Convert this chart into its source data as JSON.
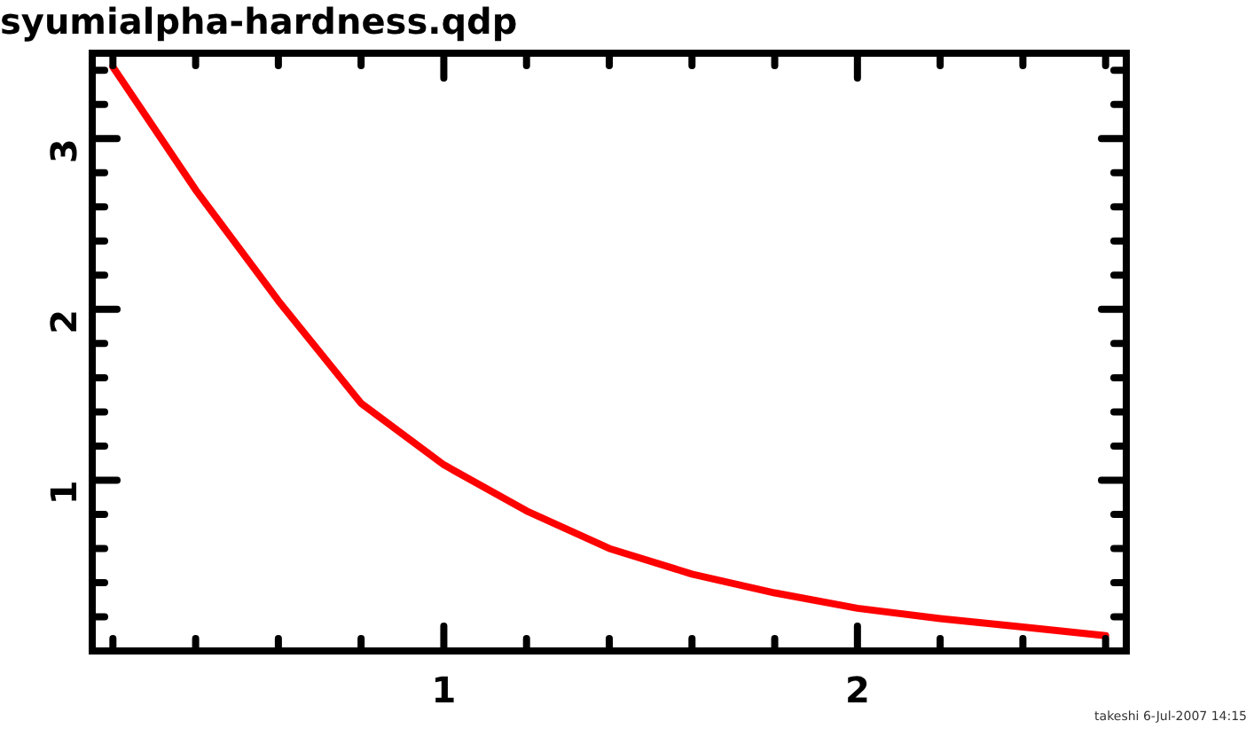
{
  "chart_data": {
    "type": "line",
    "title": "syumialpha-hardness.qdp",
    "x": [
      0.2,
      0.4,
      0.6,
      0.8,
      1.0,
      1.2,
      1.4,
      1.6,
      1.8,
      2.0,
      2.2,
      2.4,
      2.6
    ],
    "series": [
      {
        "color": "#ff0000",
        "values": [
          3.42,
          2.7,
          2.05,
          1.45,
          1.09,
          0.82,
          0.6,
          0.45,
          0.34,
          0.25,
          0.19,
          0.14,
          0.09
        ]
      }
    ],
    "xlim": [
      0.15,
      2.65
    ],
    "xticks": [
      {
        "value": 0.2,
        "label": null
      },
      {
        "value": 0.4,
        "label": null
      },
      {
        "value": 0.6,
        "label": null
      },
      {
        "value": 0.8,
        "label": null
      },
      1,
      {
        "value": 1.2,
        "label": null
      },
      {
        "value": 1.4,
        "label": null
      },
      {
        "value": 1.6,
        "label": null
      },
      {
        "value": 1.8,
        "label": null
      },
      2,
      {
        "value": 2.2,
        "label": null
      },
      {
        "value": 2.4,
        "label": null
      },
      {
        "value": 2.6,
        "label": null
      }
    ],
    "ylim": [
      0,
      3.5
    ],
    "yticks": [
      {
        "value": 0.2,
        "label": null
      },
      {
        "value": 0.4,
        "label": null
      },
      {
        "value": 0.6,
        "label": null
      },
      {
        "value": 0.8,
        "label": null
      },
      1,
      {
        "value": 1.2,
        "label": null
      },
      {
        "value": 1.4,
        "label": null
      },
      {
        "value": 1.6,
        "label": null
      },
      {
        "value": 1.8,
        "label": null
      },
      2,
      {
        "value": 2.2,
        "label": null
      },
      {
        "value": 2.4,
        "label": null
      },
      {
        "value": 2.6,
        "label": null
      },
      {
        "value": 2.8,
        "label": null
      },
      3,
      {
        "value": 3.2,
        "label": null
      },
      {
        "value": 3.4,
        "label": null
      }
    ],
    "grid": false,
    "legend": false,
    "marker": "none",
    "line_style": "solid",
    "annotations": [
      "takeshi  6-Jul-2007 14:15"
    ]
  }
}
